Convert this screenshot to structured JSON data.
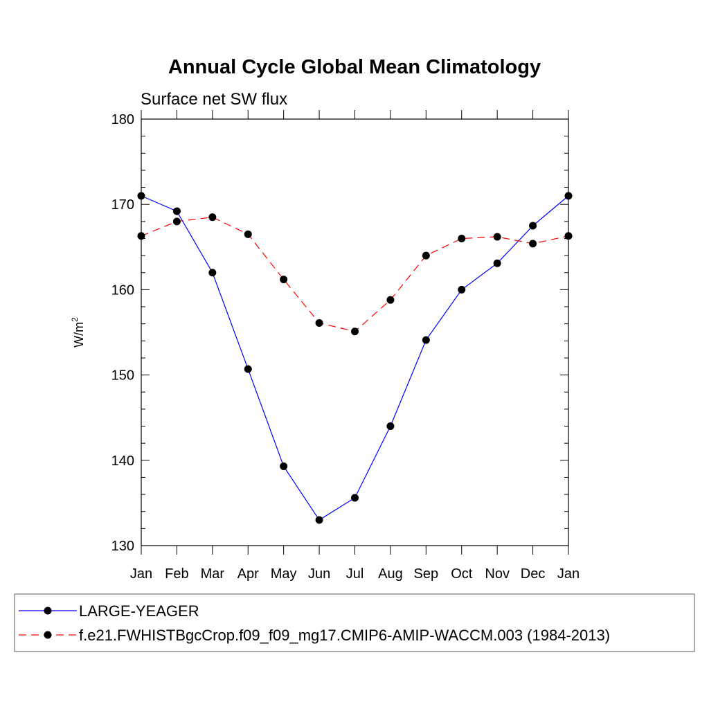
{
  "chart_data": {
    "type": "line",
    "title": "Annual Cycle Global Mean Climatology",
    "subtitle": "Surface net SW flux",
    "ylabel": "W/m",
    "ylabel_sup": "2",
    "ylim": [
      130,
      180
    ],
    "yticks": [
      "130",
      "140",
      "150",
      "160",
      "170",
      "180"
    ],
    "categories": [
      "Jan",
      "Feb",
      "Mar",
      "Apr",
      "May",
      "Jun",
      "Jul",
      "Aug",
      "Sep",
      "Oct",
      "Nov",
      "Dec",
      "Jan"
    ],
    "series": [
      {
        "name": "LARGE-YEAGER",
        "color": "#0000ff",
        "dash": "solid",
        "values": [
          171.0,
          169.2,
          162.0,
          150.7,
          139.3,
          133.0,
          135.6,
          144.0,
          154.1,
          160.0,
          163.1,
          167.5,
          171.0
        ]
      },
      {
        "name": "f.e21.FWHISTBgcCrop.f09_f09_mg17.CMIP6-AMIP-WACCM.003 (1984-2013)",
        "color": "#ff0000",
        "dash": "dashed",
        "values": [
          166.3,
          168.0,
          168.5,
          166.5,
          161.2,
          156.1,
          155.1,
          158.8,
          164.0,
          166.0,
          166.2,
          165.4,
          166.3
        ]
      }
    ],
    "grid": false,
    "legend_position": "bottom"
  }
}
